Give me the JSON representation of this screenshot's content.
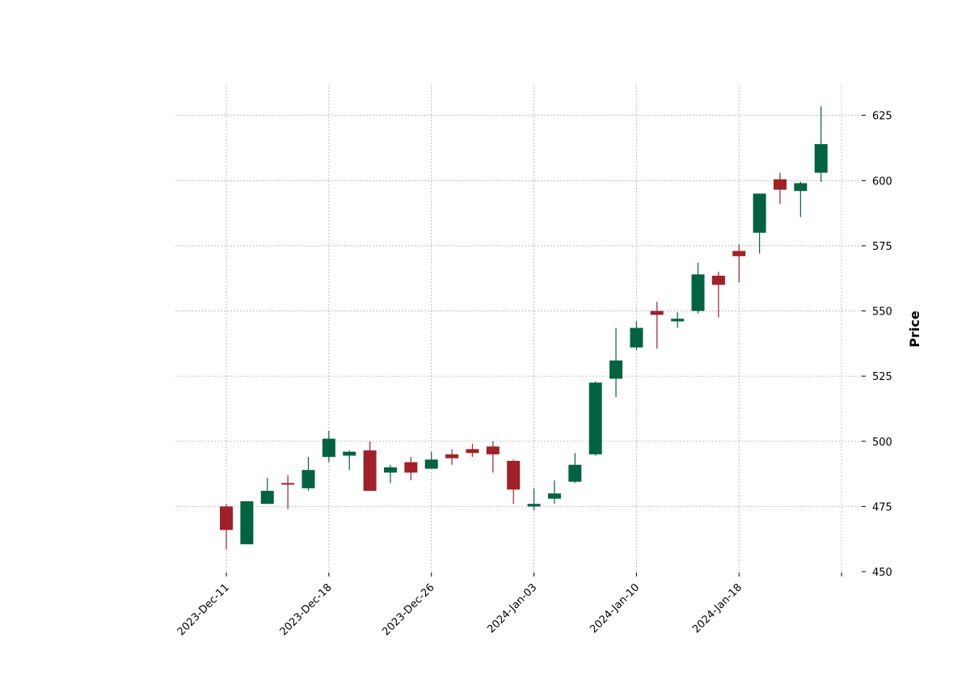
{
  "chart_data": {
    "type": "candlestick",
    "ylabel": "Price",
    "ylim": [
      450,
      637
    ],
    "yticks": [
      450,
      475,
      500,
      525,
      550,
      575,
      600,
      625
    ],
    "grid": true,
    "colors": {
      "up": "#006340",
      "down": "#a02128"
    },
    "xtick_labels": [
      {
        "index": 0,
        "label": "2023-Dec-11"
      },
      {
        "index": 5,
        "label": "2023-Dec-18"
      },
      {
        "index": 10,
        "label": "2023-Dec-26"
      },
      {
        "index": 15,
        "label": "2024-Jan-03"
      },
      {
        "index": 20,
        "label": "2024-Jan-10"
      },
      {
        "index": 25,
        "label": "2024-Jan-18"
      },
      {
        "index": 30,
        "label": ""
      }
    ],
    "candles": [
      {
        "open": 475,
        "high": 476,
        "low": 458.5,
        "close": 466
      },
      {
        "open": 460.5,
        "high": 477,
        "low": 460.5,
        "close": 477
      },
      {
        "open": 476,
        "high": 486,
        "low": 476,
        "close": 481
      },
      {
        "open": 484,
        "high": 487,
        "low": 474,
        "close": 483.5
      },
      {
        "open": 482,
        "high": 494,
        "low": 481,
        "close": 489
      },
      {
        "open": 494,
        "high": 504,
        "low": 492,
        "close": 501
      },
      {
        "open": 494.5,
        "high": 496.5,
        "low": 489,
        "close": 496
      },
      {
        "open": 496.5,
        "high": 500,
        "low": 481,
        "close": 481
      },
      {
        "open": 488,
        "high": 491,
        "low": 484,
        "close": 490
      },
      {
        "open": 492,
        "high": 494,
        "low": 485,
        "close": 488
      },
      {
        "open": 489.5,
        "high": 496,
        "low": 489.5,
        "close": 493
      },
      {
        "open": 495,
        "high": 497,
        "low": 491,
        "close": 493.5
      },
      {
        "open": 497,
        "high": 499,
        "low": 494,
        "close": 495.5
      },
      {
        "open": 498,
        "high": 500,
        "low": 488,
        "close": 495
      },
      {
        "open": 492.5,
        "high": 493,
        "low": 476,
        "close": 481.5
      },
      {
        "open": 475,
        "high": 482,
        "low": 473.5,
        "close": 476
      },
      {
        "open": 478,
        "high": 485,
        "low": 476,
        "close": 480
      },
      {
        "open": 484.5,
        "high": 495.5,
        "low": 484,
        "close": 491
      },
      {
        "open": 495,
        "high": 523,
        "low": 494.5,
        "close": 522.5
      },
      {
        "open": 524,
        "high": 543.5,
        "low": 517,
        "close": 531
      },
      {
        "open": 536,
        "high": 546,
        "low": 535,
        "close": 543.5
      },
      {
        "open": 550,
        "high": 553.5,
        "low": 535.5,
        "close": 548.5
      },
      {
        "open": 546,
        "high": 549.5,
        "low": 543.5,
        "close": 547
      },
      {
        "open": 550,
        "high": 568.5,
        "low": 549,
        "close": 564
      },
      {
        "open": 563.5,
        "high": 565,
        "low": 547.5,
        "close": 560
      },
      {
        "open": 573,
        "high": 575.5,
        "low": 561,
        "close": 571
      },
      {
        "open": 580,
        "high": 595,
        "low": 572,
        "close": 595
      },
      {
        "open": 600.5,
        "high": 603,
        "low": 591,
        "close": 596.5
      },
      {
        "open": 596,
        "high": 599.5,
        "low": 586,
        "close": 599
      },
      {
        "open": 603,
        "high": 628.5,
        "low": 599.5,
        "close": 614
      }
    ]
  }
}
